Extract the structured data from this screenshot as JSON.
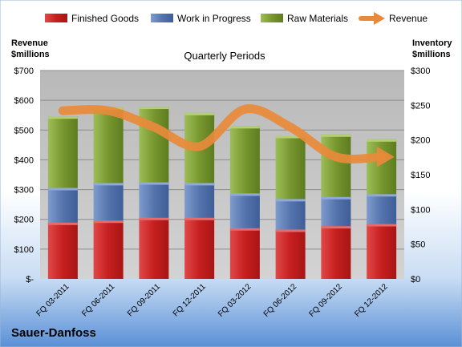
{
  "company": "Sauer-Danfoss",
  "colors": {
    "finished_goods": "#D42B2B",
    "work_in_progress": "#5C7EBA",
    "raw_materials": "#7FA23A",
    "revenue": "#E88A3A"
  },
  "chart_data": {
    "type": "bar",
    "stacked": true,
    "title": "Quarterly Periods",
    "y_left_label": [
      "Revenue",
      "$millions"
    ],
    "y_right_label": [
      "Inventory",
      "$millions"
    ],
    "categories": [
      "FQ 03-2011",
      "FQ 06-2011",
      "FQ 09-2011",
      "FQ 12-2011",
      "FQ 03-2012",
      "FQ 06-2012",
      "FQ 09-2012",
      "FQ 12-2012"
    ],
    "series": [
      {
        "name": "Finished Goods",
        "axis": "right",
        "type": "bar",
        "values": [
          81,
          84,
          88,
          88,
          73,
          71,
          76,
          79
        ]
      },
      {
        "name": "Work in Progress",
        "axis": "right",
        "type": "bar",
        "values": [
          50,
          54,
          51,
          50,
          50,
          44,
          42,
          43
        ]
      },
      {
        "name": "Raw Materials",
        "axis": "right",
        "type": "bar",
        "values": [
          103,
          109,
          109,
          101,
          97,
          91,
          90,
          79
        ]
      },
      {
        "name": "Revenue",
        "axis": "left",
        "type": "line",
        "values": [
          565,
          565,
          510,
          445,
          570,
          510,
          410,
          410
        ]
      }
    ],
    "left_axis": {
      "range": [
        0,
        700
      ],
      "ticks": [
        0,
        100,
        200,
        300,
        400,
        500,
        600,
        700
      ],
      "tick_labels": [
        "$-",
        "$100",
        "$200",
        "$300",
        "$400",
        "$500",
        "$600",
        "$700"
      ]
    },
    "right_axis": {
      "range": [
        0,
        300
      ],
      "ticks": [
        0,
        50,
        100,
        150,
        200,
        250,
        300
      ],
      "tick_labels": [
        "$0",
        "$50",
        "$100",
        "$150",
        "$200",
        "$250",
        "$300"
      ]
    },
    "grid": true,
    "legend_position": "top"
  }
}
